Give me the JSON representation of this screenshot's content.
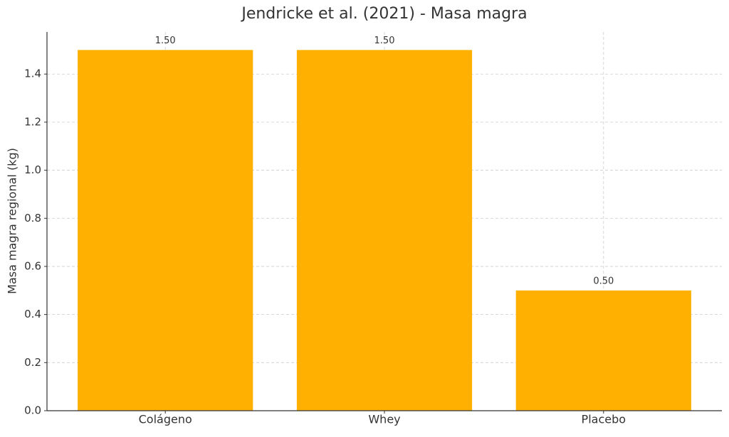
{
  "chart_data": {
    "type": "bar",
    "title": "Jendricke et al. (2021) - Masa magra",
    "y_label": "Masa magra regional (kg)",
    "categories": [
      "Colágeno",
      "Whey",
      "Placebo"
    ],
    "values": [
      1.5,
      1.5,
      0.5
    ],
    "value_labels": [
      "1.50",
      "1.50",
      "0.50"
    ],
    "color": "#ffb000",
    "ylim": [
      0,
      1.575
    ],
    "yticks": [
      {
        "value": 0,
        "label": "0.0"
      },
      {
        "value": 0.2,
        "label": "0.2"
      },
      {
        "value": 0.4,
        "label": "0.4"
      },
      {
        "value": 0.6,
        "label": "0.6"
      },
      {
        "value": 0.8,
        "label": "0.8"
      },
      {
        "value": 1,
        "label": "1.0"
      },
      {
        "value": 1.2,
        "label": "1.2"
      },
      {
        "value": 1.4,
        "label": "1.4"
      }
    ],
    "grid": true
  }
}
